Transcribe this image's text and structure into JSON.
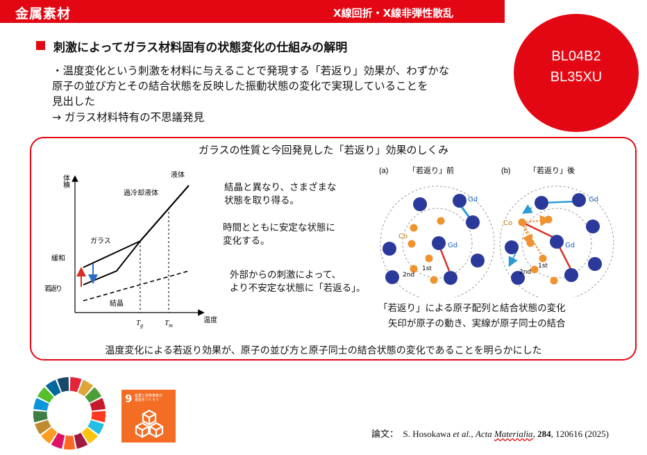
{
  "header": {
    "category": "金属素材",
    "method": "X線回折・X線非弾性散乱"
  },
  "beamlines": [
    "BL04B2",
    "BL35XU"
  ],
  "title": "刺激によってガラス材料固有の状態変化の仕組みの解明",
  "body_lines": [
    "・温度変化という刺激を材料に与えることで発現する「若返り」効果が、わずかな",
    "原子の並び方とその結合状態を反映した振動状態の変化で実現していることを",
    "見出した",
    "→ ガラス材料特有の不思議発見"
  ],
  "panel": {
    "title": "ガラスの性質と今回発見した「若返り」効果のしくみ",
    "diagram_left": {
      "y_label": "体積",
      "x_label": "温度",
      "liquid": "液体",
      "supercooled": "過冷却液体",
      "glass": "ガラス",
      "crystal": "結晶",
      "relaxation": "緩和",
      "rejuvenation": "若返り",
      "tg": "T",
      "tg_sub": "g",
      "tm": "T",
      "tm_sub": "m"
    },
    "notes": [
      [
        "結晶と異なり、さまざまな",
        "状態を取り得る。"
      ],
      [
        "時間とともに安定な状態に",
        "変化する。"
      ],
      [
        "外部からの刺激によって、",
        "より不安定な状態に「若返る」。"
      ]
    ],
    "diagram_right": {
      "panel_a_tag": "(a)",
      "panel_a_title": "「若返り」前",
      "panel_b_tag": "(b)",
      "panel_b_title": "「若返り」後",
      "gd": "Gd",
      "co": "Co",
      "first_shell": "1st",
      "second_shell": "2nd",
      "colors": {
        "gd_atom": "#2b3a9a",
        "co_atom": "#f0922d",
        "bond": "#d93025",
        "move_arrow": "#2b9bd8"
      }
    },
    "caption": [
      "「若返り」による原子配列と結合状態の変化",
      "矢印が原子の動き、実線が原子同士の結合"
    ],
    "footer": "温度変化による若返り効果が、原子の並び方と原子同士の結合状態の変化であることを明らかにした"
  },
  "sdg": {
    "number": "9",
    "label_line1": "産業と技術革新の",
    "label_line2": "基盤をつくろう",
    "colors": [
      "#e5243b",
      "#dda63a",
      "#4c9f38",
      "#c5192d",
      "#ff3a21",
      "#26bde2",
      "#fcc30b",
      "#a21942",
      "#fd6925",
      "#dd1367",
      "#fd9d24",
      "#bf8b2e",
      "#3f7e44",
      "#0a97d9",
      "#56c02b",
      "#00689d",
      "#19486a"
    ]
  },
  "citation": {
    "prefix": "論文：",
    "authors": "S. Hosokawa ",
    "etal": "et al.",
    "sep": ", ",
    "journal_a": "Acta ",
    "journal_b": "Materialia",
    "comma": ", ",
    "volume": "284",
    "rest": ", 120616 (2025)"
  }
}
